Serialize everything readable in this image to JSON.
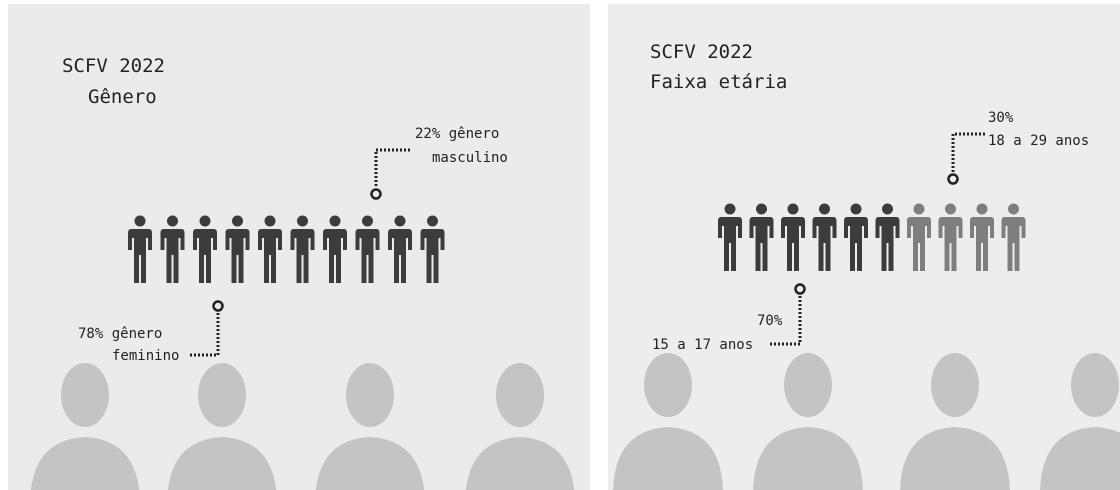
{
  "panels": [
    {
      "title": "SCFV 2022",
      "subtitle": "Gênero",
      "callouts": [
        {
          "line1": "22% gênero",
          "line2": "masculino"
        },
        {
          "line1": "78% gênero",
          "line2": "feminino"
        }
      ]
    },
    {
      "title": "SCFV 2022",
      "subtitle": "Faixa etária",
      "callouts": [
        {
          "line1": "30%",
          "line2": "18 a 29 anos"
        },
        {
          "line1": "70%",
          "line2": "15 a 17 anos"
        }
      ]
    }
  ]
}
